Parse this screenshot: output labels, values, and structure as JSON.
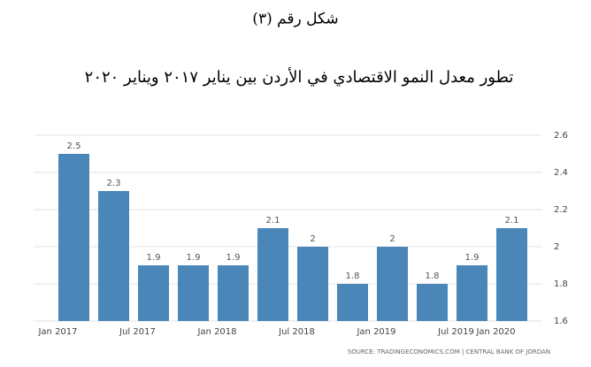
{
  "chart_data": {
    "type": "bar",
    "title": "شكل رقم (٣)",
    "subtitle": "تطور معدل النمو الاقتصادي في الأردن بين يناير ٢٠١٧ ويناير ٢٠٢٠",
    "categories": [
      "Jan 2017",
      null,
      "Jul 2017",
      null,
      "Jan 2018",
      null,
      "Jul 2018",
      null,
      "Jan 2019",
      null,
      "Jul 2019",
      "Jan 2020"
    ],
    "values": [
      2.5,
      2.3,
      1.9,
      1.9,
      1.9,
      2.1,
      2,
      1.8,
      2,
      1.8,
      1.9,
      2.1
    ],
    "color": "#4a86b8",
    "ylim": [
      1.6,
      2.6
    ],
    "yticks": [
      1.6,
      1.8,
      2,
      2.2,
      2.4,
      2.6
    ],
    "grid": true,
    "source": "SOURCE: TRADINGECONOMICS.COM  |  CENTRAL BANK OF JORDAN"
  }
}
